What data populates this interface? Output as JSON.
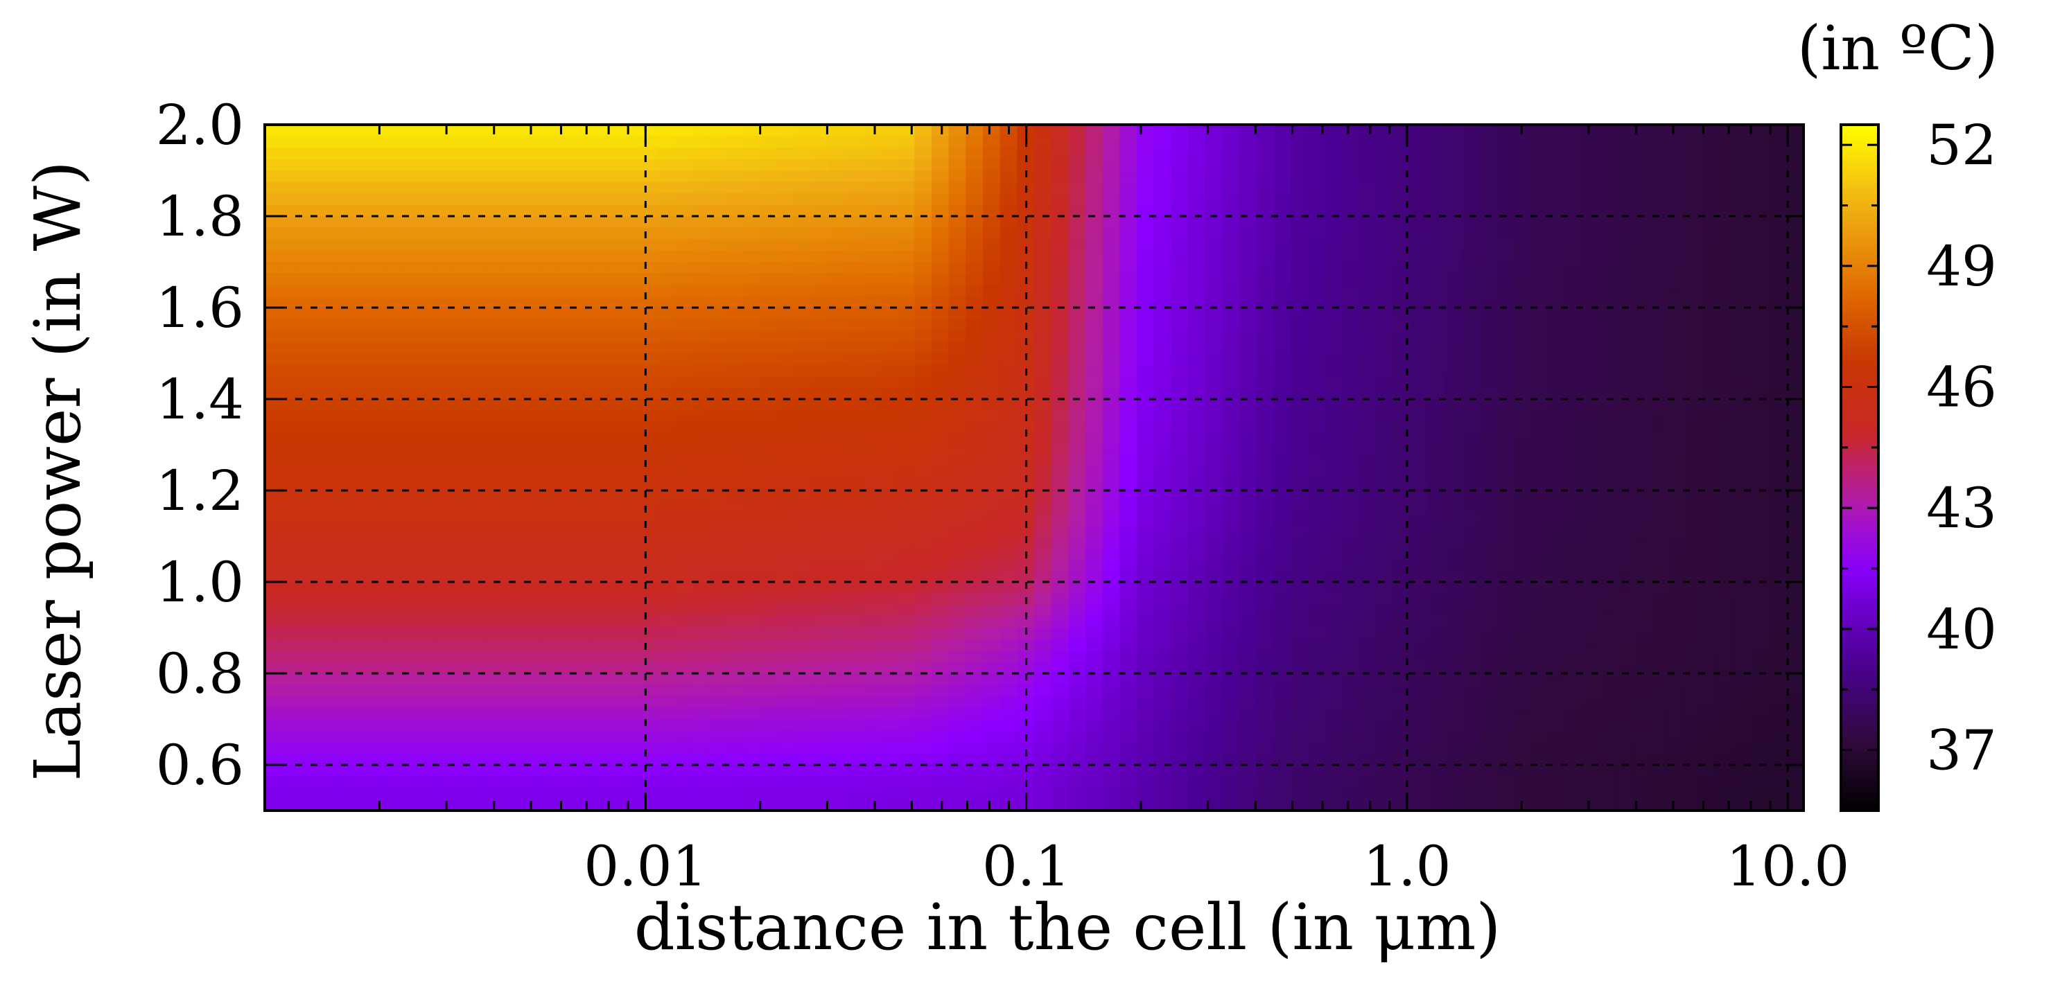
{
  "chart_data": {
    "type": "heatmap",
    "xlabel": "distance in the cell (in  μm)",
    "ylabel": "Laser power (in W)",
    "colorbar_label": "(in ºC)",
    "x_scale": "log",
    "xlim": [
      0.001,
      11
    ],
    "ylim": [
      0.5,
      2.0
    ],
    "x_ticks": [
      {
        "value": 0.01,
        "label": "0.01"
      },
      {
        "value": 0.1,
        "label": "0.1"
      },
      {
        "value": 1.0,
        "label": "1.0"
      },
      {
        "value": 10.0,
        "label": "10.0"
      }
    ],
    "y_ticks": [
      {
        "value": 0.6,
        "label": "0.6"
      },
      {
        "value": 0.8,
        "label": "0.8"
      },
      {
        "value": 1.0,
        "label": "1.0"
      },
      {
        "value": 1.2,
        "label": "1.2"
      },
      {
        "value": 1.4,
        "label": "1.4"
      },
      {
        "value": 1.6,
        "label": "1.6"
      },
      {
        "value": 1.8,
        "label": "1.8"
      },
      {
        "value": 2.0,
        "label": "2.0"
      }
    ],
    "colorbar": {
      "range": [
        35.5,
        52.5
      ],
      "ticks": [
        {
          "value": 37,
          "label": "37"
        },
        {
          "value": 40,
          "label": "40"
        },
        {
          "value": 43,
          "label": "43"
        },
        {
          "value": 46,
          "label": "46"
        },
        {
          "value": 49,
          "label": "49"
        },
        {
          "value": 52,
          "label": "52"
        }
      ],
      "palette": "black-purple-red-yellow"
    },
    "grid": true,
    "heatmap_rows": [
      {
        "power": 0.55,
        "temperatures": [
          41.2,
          41.2,
          41.0,
          40.8,
          39.8,
          38.2,
          37.2,
          36.8
        ]
      },
      {
        "power": 0.7,
        "temperatures": [
          42.5,
          42.5,
          42.2,
          41.5,
          40.0,
          38.4,
          37.3,
          36.9
        ]
      },
      {
        "power": 0.85,
        "temperatures": [
          44.0,
          44.0,
          43.6,
          42.5,
          40.3,
          38.6,
          37.4,
          37.0
        ]
      },
      {
        "power": 1.0,
        "temperatures": [
          45.2,
          45.2,
          44.8,
          44.2,
          40.6,
          38.8,
          37.5,
          37.0
        ]
      },
      {
        "power": 1.15,
        "temperatures": [
          46.0,
          46.0,
          45.6,
          45.0,
          41.0,
          39.0,
          37.6,
          37.0
        ]
      },
      {
        "power": 1.3,
        "temperatures": [
          46.6,
          46.6,
          46.3,
          45.5,
          41.2,
          39.1,
          37.6,
          37.0
        ]
      },
      {
        "power": 1.45,
        "temperatures": [
          47.3,
          47.3,
          47.0,
          45.8,
          41.4,
          39.2,
          37.7,
          37.0
        ]
      },
      {
        "power": 1.6,
        "temperatures": [
          48.2,
          48.2,
          47.9,
          46.0,
          41.5,
          39.3,
          37.7,
          37.0
        ]
      },
      {
        "power": 1.75,
        "temperatures": [
          49.5,
          49.5,
          49.1,
          46.2,
          41.6,
          39.4,
          37.8,
          37.0
        ]
      },
      {
        "power": 1.9,
        "temperatures": [
          51.0,
          51.0,
          50.5,
          46.5,
          41.8,
          39.5,
          37.8,
          37.0
        ]
      },
      {
        "power": 2.0,
        "temperatures": [
          52.0,
          52.0,
          51.3,
          46.7,
          41.9,
          39.5,
          37.8,
          37.0
        ]
      }
    ],
    "heatmap_x": [
      0.001,
      0.01,
      0.05,
      0.1,
      0.2,
      0.5,
      2.0,
      10.0
    ]
  }
}
